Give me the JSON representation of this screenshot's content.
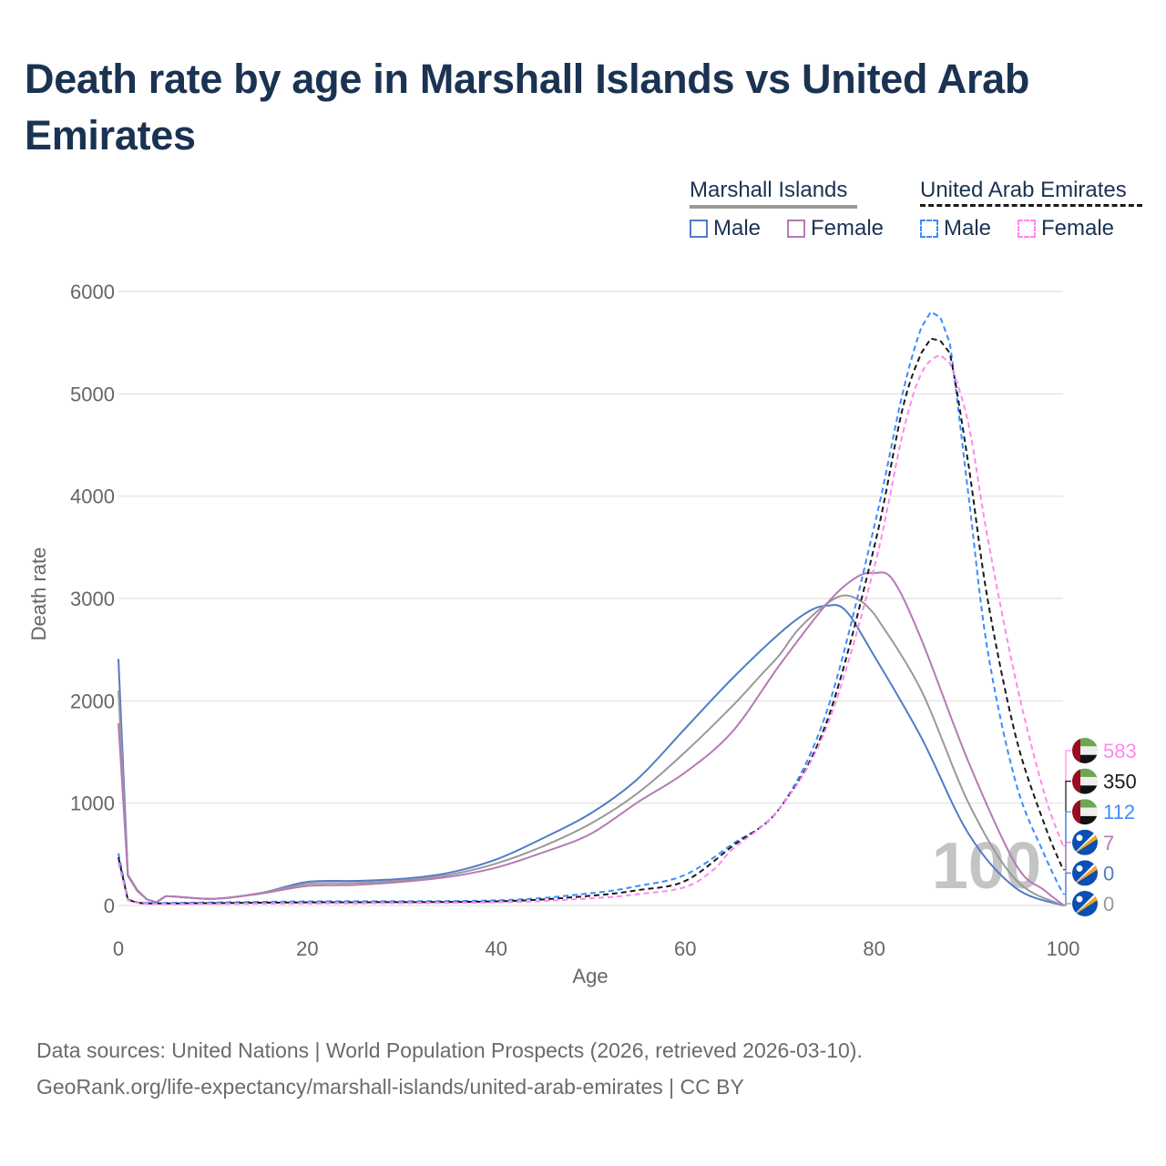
{
  "title": "Death rate by age in Marshall Islands vs United Arab Emirates",
  "legend": {
    "groups": [
      {
        "name": "Marshall Islands",
        "items": [
          "Male",
          "Female"
        ]
      },
      {
        "name": "United Arab Emirates",
        "items": [
          "Male",
          "Female"
        ]
      }
    ]
  },
  "watermark": "100",
  "sources": {
    "line1": "Data sources: United Nations | World Population Prospects (2026, retrieved 2026-03-10).",
    "line2": "GeoRank.org/life-expectancy/marshall-islands/united-arab-emirates | CC BY"
  },
  "chart_data": {
    "type": "line",
    "title": "Death rate by age in Marshall Islands vs United Arab Emirates",
    "xlabel": "Age",
    "ylabel": "Death rate",
    "xlim": [
      0,
      100
    ],
    "ylim": [
      0,
      6000
    ],
    "xticks": [
      0,
      20,
      40,
      60,
      80,
      100
    ],
    "yticks": [
      0,
      1000,
      2000,
      3000,
      4000,
      5000,
      6000
    ],
    "grid": true,
    "legend_position": "top-right",
    "series": [
      {
        "name": "Marshall Islands Male",
        "country": "Marshall Islands",
        "color": "#4f7cc8",
        "dashed": false,
        "end_label": "0",
        "points": [
          [
            0,
            2410
          ],
          [
            1,
            300
          ],
          [
            2,
            150
          ],
          [
            3,
            60
          ],
          [
            4,
            30
          ],
          [
            5,
            90
          ],
          [
            10,
            65
          ],
          [
            15,
            120
          ],
          [
            20,
            230
          ],
          [
            25,
            240
          ],
          [
            30,
            260
          ],
          [
            35,
            320
          ],
          [
            40,
            450
          ],
          [
            45,
            660
          ],
          [
            50,
            900
          ],
          [
            55,
            1240
          ],
          [
            60,
            1730
          ],
          [
            65,
            2220
          ],
          [
            70,
            2660
          ],
          [
            73,
            2870
          ],
          [
            75,
            2930
          ],
          [
            77,
            2880
          ],
          [
            80,
            2440
          ],
          [
            85,
            1640
          ],
          [
            90,
            700
          ],
          [
            95,
            170
          ],
          [
            100,
            0
          ]
        ]
      },
      {
        "name": "Marshall Islands Total",
        "country": "Marshall Islands",
        "color": "#999999",
        "dashed": false,
        "end_label": "0",
        "points": [
          [
            0,
            2100
          ],
          [
            1,
            300
          ],
          [
            2,
            150
          ],
          [
            3,
            60
          ],
          [
            4,
            30
          ],
          [
            5,
            90
          ],
          [
            10,
            65
          ],
          [
            15,
            120
          ],
          [
            20,
            210
          ],
          [
            25,
            220
          ],
          [
            30,
            245
          ],
          [
            35,
            300
          ],
          [
            40,
            410
          ],
          [
            45,
            580
          ],
          [
            50,
            800
          ],
          [
            55,
            1100
          ],
          [
            60,
            1500
          ],
          [
            65,
            1950
          ],
          [
            68,
            2250
          ],
          [
            70,
            2450
          ],
          [
            72,
            2700
          ],
          [
            75,
            2950
          ],
          [
            77,
            3030
          ],
          [
            79,
            2950
          ],
          [
            80,
            2850
          ],
          [
            85,
            2100
          ],
          [
            90,
            1000
          ],
          [
            95,
            250
          ],
          [
            100,
            0
          ]
        ]
      },
      {
        "name": "Marshall Islands Female",
        "country": "Marshall Islands",
        "color": "#b57ab5",
        "dashed": false,
        "end_label": "7",
        "points": [
          [
            0,
            1780
          ],
          [
            1,
            290
          ],
          [
            2,
            140
          ],
          [
            3,
            60
          ],
          [
            4,
            30
          ],
          [
            5,
            90
          ],
          [
            10,
            65
          ],
          [
            15,
            115
          ],
          [
            20,
            190
          ],
          [
            25,
            200
          ],
          [
            30,
            230
          ],
          [
            35,
            280
          ],
          [
            40,
            370
          ],
          [
            45,
            520
          ],
          [
            50,
            700
          ],
          [
            55,
            1010
          ],
          [
            60,
            1300
          ],
          [
            65,
            1700
          ],
          [
            70,
            2350
          ],
          [
            75,
            2950
          ],
          [
            78,
            3200
          ],
          [
            80,
            3250
          ],
          [
            82,
            3180
          ],
          [
            85,
            2600
          ],
          [
            90,
            1400
          ],
          [
            95,
            400
          ],
          [
            98,
            150
          ],
          [
            100,
            7
          ]
        ]
      },
      {
        "name": "United Arab Emirates Male",
        "country": "United Arab Emirates",
        "color": "#3d8bff",
        "dashed": true,
        "end_label": "112",
        "points": [
          [
            0,
            510
          ],
          [
            1,
            60
          ],
          [
            2,
            30
          ],
          [
            5,
            25
          ],
          [
            20,
            40
          ],
          [
            40,
            50
          ],
          [
            50,
            120
          ],
          [
            55,
            190
          ],
          [
            60,
            300
          ],
          [
            65,
            600
          ],
          [
            70,
            950
          ],
          [
            75,
            1900
          ],
          [
            80,
            3700
          ],
          [
            83,
            5000
          ],
          [
            85,
            5650
          ],
          [
            86,
            5800
          ],
          [
            87,
            5750
          ],
          [
            88,
            5500
          ],
          [
            90,
            4000
          ],
          [
            92,
            2500
          ],
          [
            95,
            1200
          ],
          [
            98,
            500
          ],
          [
            100,
            112
          ]
        ]
      },
      {
        "name": "United Arab Emirates Total",
        "country": "United Arab Emirates",
        "color": "#1a1a1a",
        "dashed": true,
        "end_label": "350",
        "points": [
          [
            0,
            470
          ],
          [
            1,
            55
          ],
          [
            2,
            28
          ],
          [
            5,
            20
          ],
          [
            20,
            30
          ],
          [
            40,
            40
          ],
          [
            50,
            95
          ],
          [
            55,
            150
          ],
          [
            60,
            240
          ],
          [
            65,
            580
          ],
          [
            70,
            950
          ],
          [
            75,
            1800
          ],
          [
            80,
            3500
          ],
          [
            83,
            4850
          ],
          [
            85,
            5400
          ],
          [
            86,
            5540
          ],
          [
            87,
            5520
          ],
          [
            88,
            5400
          ],
          [
            90,
            4300
          ],
          [
            92,
            3000
          ],
          [
            95,
            1650
          ],
          [
            98,
            800
          ],
          [
            100,
            350
          ]
        ]
      },
      {
        "name": "United Arab Emirates Female",
        "country": "United Arab Emirates",
        "color": "#ff88ee",
        "dashed": true,
        "end_label": "583",
        "points": [
          [
            0,
            420
          ],
          [
            1,
            50
          ],
          [
            2,
            25
          ],
          [
            5,
            15
          ],
          [
            20,
            20
          ],
          [
            40,
            30
          ],
          [
            50,
            70
          ],
          [
            55,
            110
          ],
          [
            60,
            180
          ],
          [
            63,
            350
          ],
          [
            65,
            550
          ],
          [
            70,
            950
          ],
          [
            75,
            1750
          ],
          [
            80,
            3300
          ],
          [
            83,
            4600
          ],
          [
            85,
            5200
          ],
          [
            87,
            5380
          ],
          [
            88,
            5300
          ],
          [
            90,
            4700
          ],
          [
            92,
            3600
          ],
          [
            95,
            2200
          ],
          [
            98,
            1100
          ],
          [
            100,
            583
          ]
        ]
      }
    ]
  }
}
